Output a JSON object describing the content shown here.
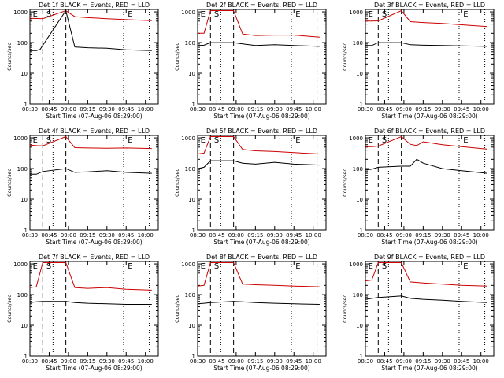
{
  "figure": {
    "xlabel": "Start Time (07-Aug-06 08:29:00)",
    "ylabel": "Counts/sec",
    "x_tick_labels": [
      "08:30",
      "08:45",
      "09:00",
      "09:15",
      "09:30",
      "09:45",
      "10:00"
    ],
    "y_tick_labels": [
      "1",
      "10",
      "100",
      "1000"
    ],
    "colors": {
      "events": "#000000",
      "lld": "#cc0000"
    }
  },
  "chart_data": [
    {
      "type": "line",
      "title": "Det 1f BLACK = Events, RED = LLD",
      "xlabel": "Start Time (07-Aug-06 08:29:00)",
      "ylabel": "Counts/sec",
      "ylim": [
        1,
        1200
      ],
      "y_scale": "log",
      "xlim": [
        "08:30",
        "10:10"
      ],
      "annotations": [
        "E",
        "S",
        "E"
      ],
      "events_timeline": {
        "E_start": "08:31",
        "S": "08:44",
        "dashed": [
          "08:40",
          "08:58"
        ],
        "dotted": [
          "08:48",
          "09:43",
          "10:03"
        ],
        "E_end": "09:45"
      },
      "series": [
        {
          "name": "LLD",
          "color": "#cc0000",
          "points": [
            [
              "08:30",
              620
            ],
            [
              "08:35",
              610
            ],
            [
              "08:40",
              600
            ],
            [
              "08:58",
              1100
            ],
            [
              "09:05",
              700
            ],
            [
              "09:15",
              650
            ],
            [
              "09:30",
              600
            ],
            [
              "09:45",
              560
            ],
            [
              "10:05",
              520
            ]
          ]
        },
        {
          "name": "Events",
          "color": "#000000",
          "points": [
            [
              "08:30",
              55
            ],
            [
              "08:35",
              55
            ],
            [
              "08:38",
              60
            ],
            [
              "08:58",
              1100
            ],
            [
              "09:05",
              72
            ],
            [
              "09:15",
              68
            ],
            [
              "09:30",
              65
            ],
            [
              "09:45",
              58
            ],
            [
              "10:05",
              55
            ]
          ]
        }
      ]
    },
    {
      "type": "line",
      "title": "Det 2f BLACK = Events, RED = LLD",
      "xlabel": "Start Time (07-Aug-06 08:29:00)",
      "ylabel": "Counts/sec",
      "ylim": [
        1,
        1200
      ],
      "y_scale": "log",
      "xlim": [
        "08:30",
        "10:10"
      ],
      "annotations": [
        "E",
        "S",
        "E"
      ],
      "series": [
        {
          "name": "LLD",
          "color": "#cc0000",
          "points": [
            [
              "08:30",
              200
            ],
            [
              "08:35",
              200
            ],
            [
              "08:40",
              1100
            ],
            [
              "08:58",
              1100
            ],
            [
              "09:05",
              190
            ],
            [
              "09:15",
              170
            ],
            [
              "09:30",
              175
            ],
            [
              "09:45",
              175
            ],
            [
              "10:05",
              150
            ]
          ]
        },
        {
          "name": "Events",
          "color": "#000000",
          "points": [
            [
              "08:30",
              80
            ],
            [
              "08:35",
              82
            ],
            [
              "08:40",
              100
            ],
            [
              "08:58",
              100
            ],
            [
              "09:05",
              90
            ],
            [
              "09:15",
              80
            ],
            [
              "09:30",
              85
            ],
            [
              "09:45",
              80
            ],
            [
              "10:05",
              75
            ]
          ]
        }
      ]
    },
    {
      "type": "line",
      "title": "Det 3f BLACK = Events, RED = LLD",
      "xlabel": "Start Time (07-Aug-06 08:29:00)",
      "ylabel": "Counts/sec",
      "ylim": [
        1,
        1200
      ],
      "y_scale": "log",
      "xlim": [
        "08:30",
        "10:10"
      ],
      "annotations": [
        "E",
        "S",
        "E"
      ],
      "series": [
        {
          "name": "LLD",
          "color": "#cc0000",
          "points": [
            [
              "08:30",
              500
            ],
            [
              "08:35",
              500
            ],
            [
              "08:40",
              510
            ],
            [
              "08:58",
              1100
            ],
            [
              "09:05",
              480
            ],
            [
              "09:15",
              450
            ],
            [
              "09:30",
              420
            ],
            [
              "09:45",
              380
            ],
            [
              "10:05",
              330
            ]
          ]
        },
        {
          "name": "Events",
          "color": "#000000",
          "points": [
            [
              "08:30",
              80
            ],
            [
              "08:35",
              80
            ],
            [
              "08:40",
              100
            ],
            [
              "08:58",
              100
            ],
            [
              "09:05",
              85
            ],
            [
              "09:15",
              82
            ],
            [
              "09:30",
              80
            ],
            [
              "09:45",
              78
            ],
            [
              "10:05",
              75
            ]
          ]
        }
      ]
    },
    {
      "type": "line",
      "title": "Det 4f BLACK = Events, RED = LLD",
      "xlabel": "Start Time (07-Aug-06 08:29:00)",
      "ylabel": "Counts/sec",
      "ylim": [
        1,
        1200
      ],
      "y_scale": "log",
      "xlim": [
        "08:30",
        "10:10"
      ],
      "annotations": [
        "E",
        "S",
        "E"
      ],
      "series": [
        {
          "name": "LLD",
          "color": "#cc0000",
          "points": [
            [
              "08:30",
              580
            ],
            [
              "08:35",
              560
            ],
            [
              "08:40",
              550
            ],
            [
              "08:58",
              1100
            ],
            [
              "09:05",
              480
            ],
            [
              "09:15",
              470
            ],
            [
              "09:30",
              460
            ],
            [
              "09:45",
              470
            ],
            [
              "10:05",
              450
            ]
          ]
        },
        {
          "name": "Events",
          "color": "#000000",
          "points": [
            [
              "08:30",
              65
            ],
            [
              "08:35",
              65
            ],
            [
              "08:40",
              80
            ],
            [
              "08:58",
              100
            ],
            [
              "09:05",
              75
            ],
            [
              "09:15",
              78
            ],
            [
              "09:30",
              85
            ],
            [
              "09:45",
              75
            ],
            [
              "10:05",
              70
            ]
          ]
        }
      ]
    },
    {
      "type": "line",
      "title": "Det 5f BLACK = Events, RED = LLD",
      "xlabel": "Start Time (07-Aug-06 08:29:00)",
      "ylabel": "Counts/sec",
      "ylim": [
        1,
        1200
      ],
      "y_scale": "log",
      "xlim": [
        "08:30",
        "10:10"
      ],
      "annotations": [
        "E",
        "S",
        "E"
      ],
      "series": [
        {
          "name": "LLD",
          "color": "#cc0000",
          "points": [
            [
              "08:30",
              300
            ],
            [
              "08:35",
              320
            ],
            [
              "08:40",
              1100
            ],
            [
              "08:58",
              1100
            ],
            [
              "09:05",
              420
            ],
            [
              "09:15",
              380
            ],
            [
              "09:30",
              360
            ],
            [
              "09:45",
              330
            ],
            [
              "10:05",
              300
            ]
          ]
        },
        {
          "name": "Events",
          "color": "#000000",
          "points": [
            [
              "08:30",
              100
            ],
            [
              "08:35",
              110
            ],
            [
              "08:40",
              180
            ],
            [
              "08:58",
              180
            ],
            [
              "09:05",
              150
            ],
            [
              "09:15",
              140
            ],
            [
              "09:30",
              160
            ],
            [
              "09:45",
              140
            ],
            [
              "10:05",
              130
            ]
          ]
        }
      ]
    },
    {
      "type": "line",
      "title": "Det 6f BLACK = Events, RED = LLD",
      "xlabel": "Start Time (07-Aug-06 08:29:00)",
      "ylabel": "Counts/sec",
      "ylim": [
        1,
        1200
      ],
      "y_scale": "log",
      "xlim": [
        "08:30",
        "10:10"
      ],
      "annotations": [
        "E",
        "S",
        "E"
      ],
      "series": [
        {
          "name": "LLD",
          "color": "#cc0000",
          "points": [
            [
              "08:30",
              520
            ],
            [
              "08:35",
              520
            ],
            [
              "08:40",
              540
            ],
            [
              "08:58",
              1100
            ],
            [
              "09:05",
              620
            ],
            [
              "09:10",
              560
            ],
            [
              "09:15",
              750
            ],
            [
              "09:30",
              600
            ],
            [
              "09:45",
              520
            ],
            [
              "10:05",
              430
            ]
          ]
        },
        {
          "name": "Events",
          "color": "#000000",
          "points": [
            [
              "08:30",
              90
            ],
            [
              "08:35",
              95
            ],
            [
              "08:40",
              110
            ],
            [
              "08:58",
              120
            ],
            [
              "09:05",
              120
            ],
            [
              "09:10",
              200
            ],
            [
              "09:15",
              150
            ],
            [
              "09:30",
              100
            ],
            [
              "09:45",
              85
            ],
            [
              "10:05",
              70
            ]
          ]
        }
      ]
    },
    {
      "type": "line",
      "title": "Det 7f BLACK = Events, RED = LLD",
      "xlabel": "Start Time (07-Aug-06 08:29:00)",
      "ylabel": "Counts/sec",
      "ylim": [
        1,
        1200
      ],
      "y_scale": "log",
      "xlim": [
        "08:30",
        "10:10"
      ],
      "annotations": [
        "E",
        "S",
        "E"
      ],
      "series": [
        {
          "name": "LLD",
          "color": "#cc0000",
          "points": [
            [
              "08:30",
              170
            ],
            [
              "08:35",
              180
            ],
            [
              "08:40",
              1100
            ],
            [
              "08:58",
              1100
            ],
            [
              "09:05",
              170
            ],
            [
              "09:15",
              160
            ],
            [
              "09:30",
              170
            ],
            [
              "09:45",
              150
            ],
            [
              "10:05",
              140
            ]
          ]
        },
        {
          "name": "Events",
          "color": "#000000",
          "points": [
            [
              "08:30",
              55
            ],
            [
              "08:35",
              58
            ],
            [
              "08:40",
              60
            ],
            [
              "08:58",
              60
            ],
            [
              "09:05",
              55
            ],
            [
              "09:15",
              52
            ],
            [
              "09:30",
              50
            ],
            [
              "09:45",
              48
            ],
            [
              "10:05",
              48
            ]
          ]
        }
      ]
    },
    {
      "type": "line",
      "title": "Det 8f BLACK = Events, RED = LLD",
      "xlabel": "Start Time (07-Aug-06 08:29:00)",
      "ylabel": "Counts/sec",
      "ylim": [
        1,
        1200
      ],
      "y_scale": "log",
      "xlim": [
        "08:30",
        "10:10"
      ],
      "annotations": [
        "E",
        "S",
        "E"
      ],
      "series": [
        {
          "name": "LLD",
          "color": "#cc0000",
          "points": [
            [
              "08:30",
              190
            ],
            [
              "08:35",
              200
            ],
            [
              "08:40",
              1100
            ],
            [
              "08:58",
              1100
            ],
            [
              "09:05",
              220
            ],
            [
              "09:15",
              210
            ],
            [
              "09:30",
              200
            ],
            [
              "09:45",
              190
            ],
            [
              "10:05",
              180
            ]
          ]
        },
        {
          "name": "Events",
          "color": "#000000",
          "points": [
            [
              "08:30",
              50
            ],
            [
              "08:35",
              52
            ],
            [
              "08:40",
              55
            ],
            [
              "08:58",
              60
            ],
            [
              "09:05",
              58
            ],
            [
              "09:15",
              55
            ],
            [
              "09:30",
              52
            ],
            [
              "09:45",
              50
            ],
            [
              "10:05",
              48
            ]
          ]
        }
      ]
    },
    {
      "type": "line",
      "title": "Det 9f BLACK = Events, RED = LLD",
      "xlabel": "Start Time (07-Aug-06 08:29:00)",
      "ylabel": "Counts/sec",
      "ylim": [
        1,
        1200
      ],
      "y_scale": "log",
      "xlim": [
        "08:30",
        "10:10"
      ],
      "annotations": [
        "E",
        "S",
        "E"
      ],
      "series": [
        {
          "name": "LLD",
          "color": "#cc0000",
          "points": [
            [
              "08:30",
              280
            ],
            [
              "08:35",
              300
            ],
            [
              "08:40",
              1100
            ],
            [
              "08:58",
              1100
            ],
            [
              "09:05",
              260
            ],
            [
              "09:15",
              240
            ],
            [
              "09:30",
              220
            ],
            [
              "09:45",
              200
            ],
            [
              "10:05",
              190
            ]
          ]
        },
        {
          "name": "Events",
          "color": "#000000",
          "points": [
            [
              "08:30",
              70
            ],
            [
              "08:35",
              75
            ],
            [
              "08:40",
              80
            ],
            [
              "08:58",
              90
            ],
            [
              "09:05",
              75
            ],
            [
              "09:15",
              70
            ],
            [
              "09:30",
              65
            ],
            [
              "09:45",
              60
            ],
            [
              "10:05",
              55
            ]
          ]
        }
      ]
    }
  ]
}
